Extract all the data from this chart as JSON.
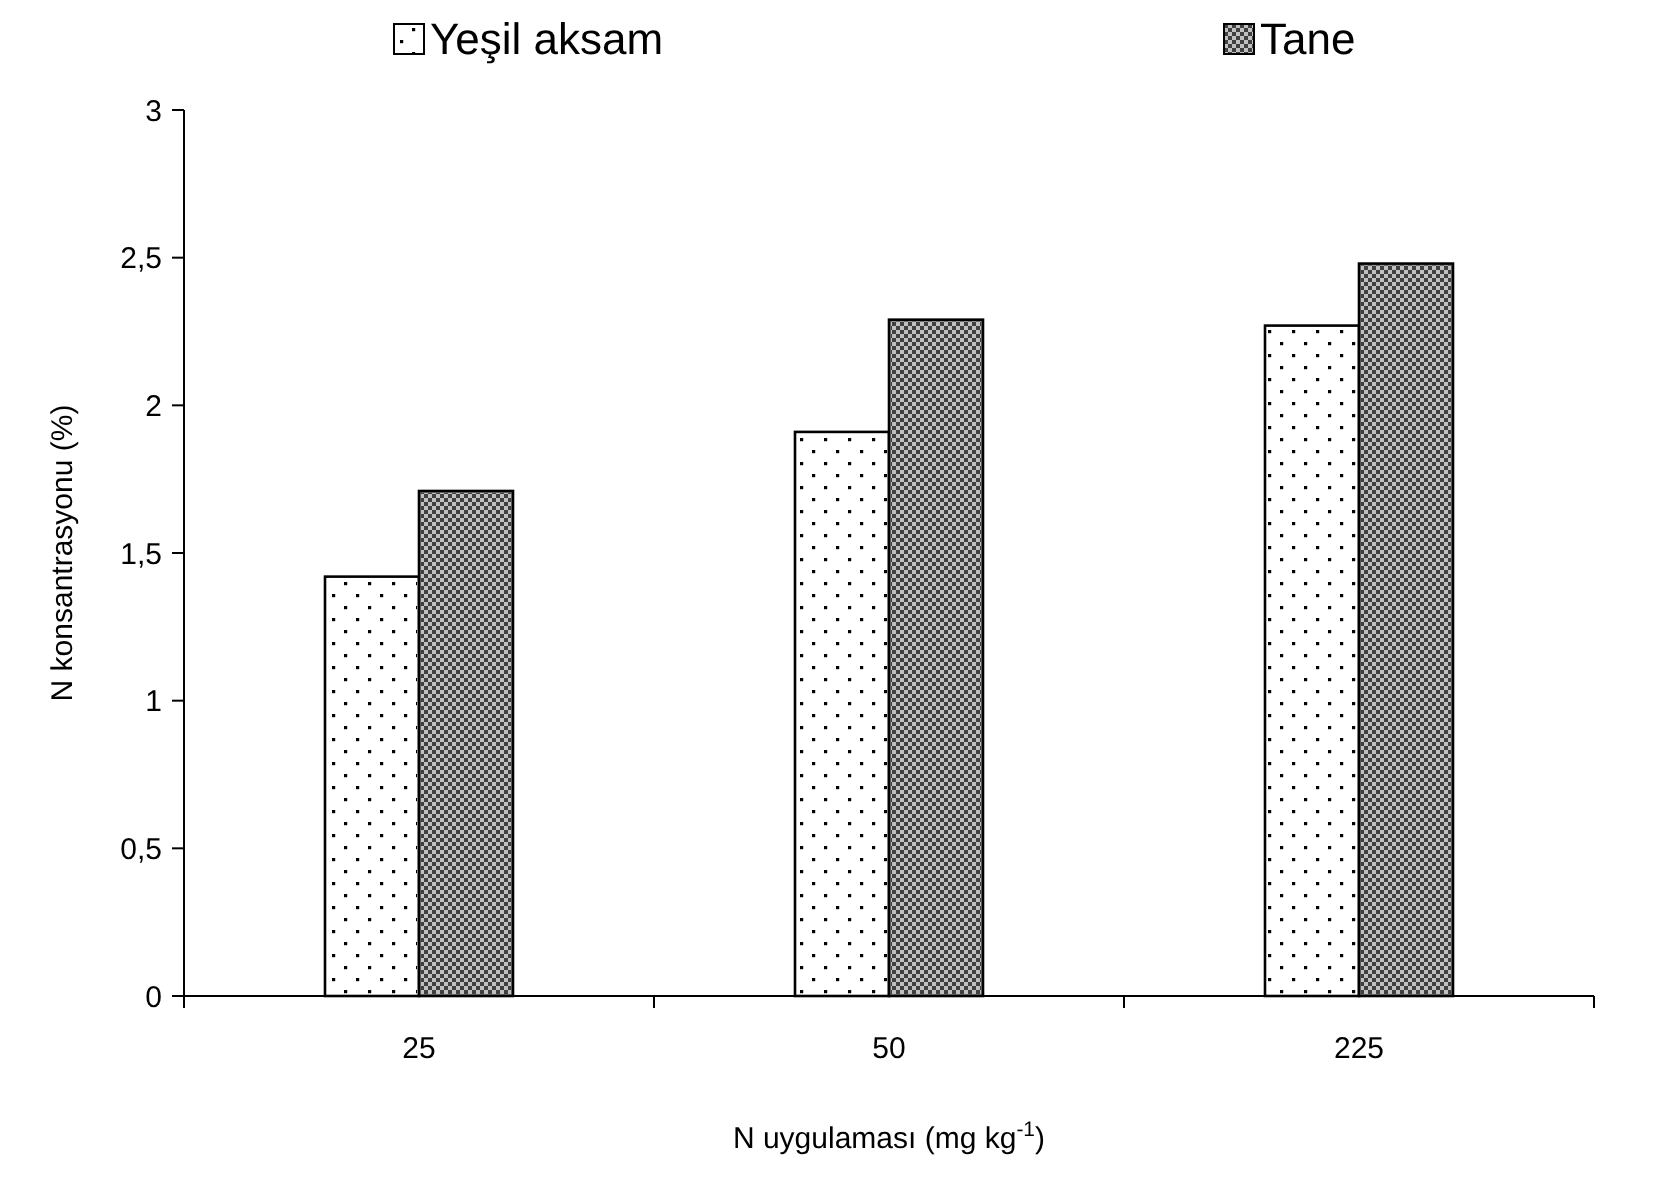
{
  "chart_data": {
    "type": "bar",
    "categories": [
      "25",
      "50",
      "225"
    ],
    "series": [
      {
        "name": "Yeşil aksam",
        "color": "#ffffff",
        "values": [
          1.42,
          1.91,
          2.27
        ]
      },
      {
        "name": "Tane",
        "color": "#808080",
        "values": [
          1.71,
          2.29,
          2.48
        ]
      }
    ],
    "xlabel": "N uygulaması (mg kg$^{-1}$)",
    "ylabel": "N konsantrasyonu (%)",
    "ylim": [
      0,
      3
    ],
    "yticks": [
      0,
      {
        "value": 0.5,
        "label": "0,5"
      },
      1,
      {
        "value": 1.5,
        "label": "1,5"
      },
      2,
      {
        "value": 2.5,
        "label": "2,5"
      },
      3
    ],
    "grid": false,
    "legend": "top"
  }
}
